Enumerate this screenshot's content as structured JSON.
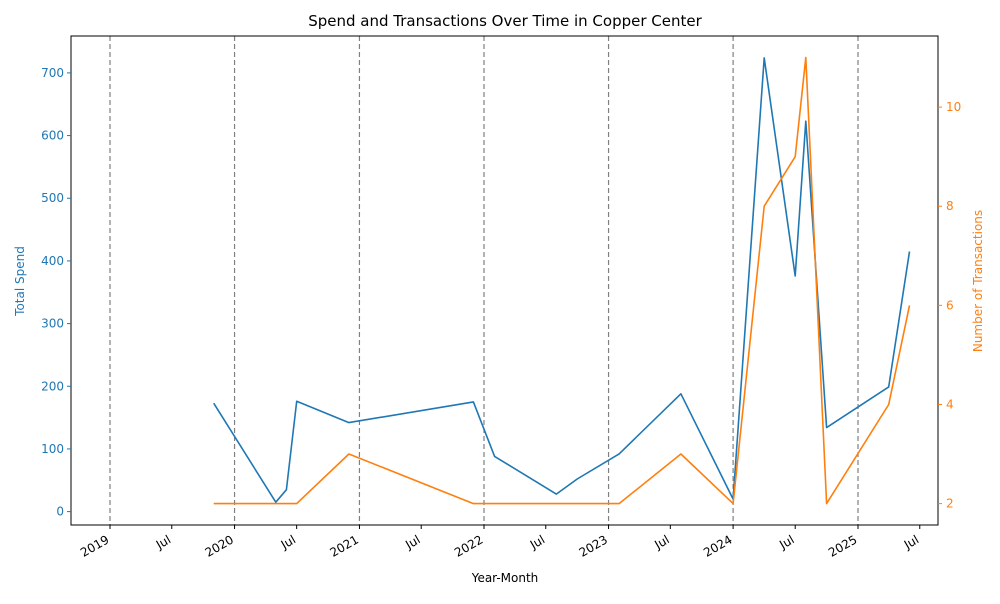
{
  "chart_data": {
    "type": "line",
    "title": "Spend and Transactions Over Time in Copper Center",
    "xlabel": "Year-Month",
    "ylabel_left": "Total Spend",
    "ylabel_right": "Number of Transactions",
    "x_ticks": [
      {
        "date": "2019-01-01",
        "label": "2019"
      },
      {
        "date": "2019-07-01",
        "label": "Jul"
      },
      {
        "date": "2020-01-01",
        "label": "2020"
      },
      {
        "date": "2020-07-01",
        "label": "Jul"
      },
      {
        "date": "2021-01-01",
        "label": "2021"
      },
      {
        "date": "2021-07-01",
        "label": "Jul"
      },
      {
        "date": "2022-01-01",
        "label": "2022"
      },
      {
        "date": "2022-07-01",
        "label": "Jul"
      },
      {
        "date": "2023-01-01",
        "label": "2023"
      },
      {
        "date": "2023-07-01",
        "label": "Jul"
      },
      {
        "date": "2024-01-01",
        "label": "2024"
      },
      {
        "date": "2024-07-01",
        "label": "Jul"
      },
      {
        "date": "2025-01-01",
        "label": "2025"
      },
      {
        "date": "2025-07-01",
        "label": "Jul"
      }
    ],
    "year_lines": [
      "2019-01-01",
      "2020-01-01",
      "2021-01-01",
      "2022-01-01",
      "2023-01-01",
      "2024-01-01",
      "2025-01-01"
    ],
    "y_left_ticks": [
      0,
      100,
      200,
      300,
      400,
      500,
      600,
      700
    ],
    "y_right_ticks": [
      2,
      4,
      6,
      8,
      10
    ],
    "colors": {
      "spend": "#1f77b4",
      "transactions": "#ff7f0e",
      "year_line": "#808080"
    },
    "series": [
      {
        "axis": "left",
        "x": [
          "2019-11",
          "2020-05",
          "2020-06",
          "2020-07",
          "2020-12",
          "2021-12",
          "2022-02",
          "2022-08",
          "2022-10",
          "2023-02",
          "2023-08",
          "2024-01",
          "2024-04",
          "2024-07",
          "2024-08",
          "2024-10",
          "2025-04",
          "2025-06"
        ],
        "values": [
          173,
          15,
          35,
          176,
          142,
          175,
          88,
          28,
          52,
          92,
          188,
          20,
          724,
          376,
          623,
          134,
          199,
          415
        ]
      },
      {
        "axis": "right",
        "x": [
          "2019-11",
          "2020-05",
          "2020-06",
          "2020-07",
          "2020-12",
          "2021-12",
          "2022-02",
          "2022-08",
          "2022-10",
          "2023-02",
          "2023-08",
          "2024-01",
          "2024-04",
          "2024-07",
          "2024-08",
          "2024-10",
          "2025-04",
          "2025-06"
        ],
        "values": [
          2,
          2,
          2,
          2,
          3,
          2,
          2,
          2,
          2,
          2,
          3,
          2,
          8,
          9,
          11,
          2,
          4,
          6
        ]
      }
    ]
  }
}
